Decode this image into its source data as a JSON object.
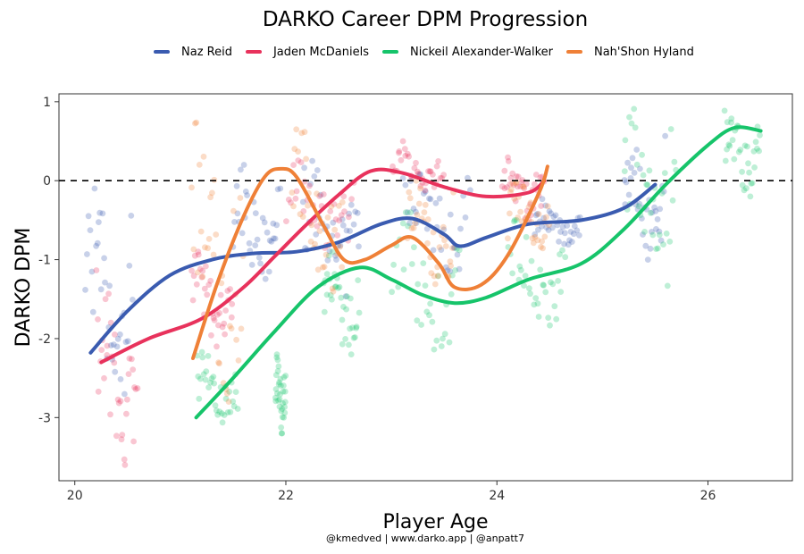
{
  "chart_data": {
    "type": "scatter",
    "title": "DARKO Career DPM Progression",
    "xlabel": "Player Age",
    "ylabel": "DARKO DPM",
    "xlim": [
      19.85,
      26.8
    ],
    "ylim": [
      -3.8,
      1.1
    ],
    "xticks": [
      20,
      22,
      24,
      26
    ],
    "yticks": [
      1,
      0,
      -1,
      -2,
      -3
    ],
    "reference_line": 0,
    "legend_position": "top",
    "caption": "@kmedved | www.darko.app | @anpatt7",
    "series": [
      {
        "name": "Naz Reid",
        "color": "#3a5bb0",
        "trend": [
          [
            20.15,
            -2.18
          ],
          [
            20.5,
            -1.65
          ],
          [
            20.9,
            -1.2
          ],
          [
            21.3,
            -1.0
          ],
          [
            21.7,
            -0.92
          ],
          [
            22.1,
            -0.9
          ],
          [
            22.5,
            -0.78
          ],
          [
            22.9,
            -0.55
          ],
          [
            23.2,
            -0.48
          ],
          [
            23.5,
            -0.68
          ],
          [
            23.65,
            -0.83
          ],
          [
            23.9,
            -0.72
          ],
          [
            24.3,
            -0.55
          ],
          [
            24.8,
            -0.5
          ],
          [
            25.2,
            -0.35
          ],
          [
            25.5,
            -0.05
          ]
        ],
        "clusters": [
          {
            "x": [
              20.1,
              20.55
            ],
            "y": [
              -3.1,
              -0.1
            ]
          },
          {
            "x": [
              21.5,
              21.95
            ],
            "y": [
              -1.3,
              0.2
            ]
          },
          {
            "x": [
              22.15,
              22.7
            ],
            "y": [
              -1.5,
              0.25
            ]
          },
          {
            "x": [
              23.1,
              23.75
            ],
            "y": [
              -1.2,
              0.3
            ]
          },
          {
            "x": [
              24.35,
              24.8
            ],
            "y": [
              -0.9,
              -0.2
            ]
          },
          {
            "x": [
              25.2,
              25.6
            ],
            "y": [
              -1.0,
              0.65
            ]
          }
        ]
      },
      {
        "name": "Jaden McDaniels",
        "color": "#e8325c",
        "trend": [
          [
            20.25,
            -2.3
          ],
          [
            20.7,
            -2.0
          ],
          [
            21.2,
            -1.75
          ],
          [
            21.6,
            -1.35
          ],
          [
            21.9,
            -0.95
          ],
          [
            22.2,
            -0.55
          ],
          [
            22.5,
            -0.18
          ],
          [
            22.8,
            0.12
          ],
          [
            23.1,
            0.1
          ],
          [
            23.5,
            -0.08
          ],
          [
            23.9,
            -0.2
          ],
          [
            24.3,
            -0.15
          ],
          [
            24.45,
            0.0
          ]
        ],
        "clusters": [
          {
            "x": [
              20.2,
              20.6
            ],
            "y": [
              -3.6,
              -1.1
            ]
          },
          {
            "x": [
              21.1,
              21.5
            ],
            "y": [
              -2.1,
              -0.9
            ]
          },
          {
            "x": [
              22.0,
              22.65
            ],
            "y": [
              -0.9,
              0.35
            ]
          },
          {
            "x": [
              23.0,
              23.5
            ],
            "y": [
              -0.2,
              0.5
            ]
          },
          {
            "x": [
              24.05,
              24.45
            ],
            "y": [
              -0.5,
              0.3
            ]
          }
        ]
      },
      {
        "name": "Nickeil Alexander-Walker",
        "color": "#16c46a",
        "trend": [
          [
            21.15,
            -3.0
          ],
          [
            21.5,
            -2.5
          ],
          [
            21.9,
            -1.9
          ],
          [
            22.3,
            -1.35
          ],
          [
            22.7,
            -1.1
          ],
          [
            23.0,
            -1.25
          ],
          [
            23.3,
            -1.45
          ],
          [
            23.6,
            -1.55
          ],
          [
            23.9,
            -1.48
          ],
          [
            24.3,
            -1.25
          ],
          [
            24.8,
            -1.05
          ],
          [
            25.2,
            -0.62
          ],
          [
            25.6,
            -0.05
          ],
          [
            26.0,
            0.45
          ],
          [
            26.25,
            0.67
          ],
          [
            26.5,
            0.63
          ]
        ],
        "clusters": [
          {
            "x": [
              21.15,
              21.55
            ],
            "y": [
              -3.15,
              -2.15
            ]
          },
          {
            "x": [
              21.9,
              22.0
            ],
            "y": [
              -3.2,
              -2.2
            ]
          },
          {
            "x": [
              22.35,
              22.7
            ],
            "y": [
              -2.2,
              -0.9
            ]
          },
          {
            "x": [
              23.0,
              23.65
            ],
            "y": [
              -2.2,
              -0.3
            ]
          },
          {
            "x": [
              24.1,
              24.65
            ],
            "y": [
              -2.0,
              -0.5
            ]
          },
          {
            "x": [
              25.2,
              25.7
            ],
            "y": [
              -1.5,
              0.95
            ]
          },
          {
            "x": [
              26.15,
              26.5
            ],
            "y": [
              -0.2,
              1.0
            ]
          }
        ]
      },
      {
        "name": "Nah'Shon Hyland",
        "color": "#ef8037",
        "trend": [
          [
            21.12,
            -2.25
          ],
          [
            21.35,
            -1.3
          ],
          [
            21.6,
            -0.45
          ],
          [
            21.8,
            0.05
          ],
          [
            21.95,
            0.15
          ],
          [
            22.1,
            0.05
          ],
          [
            22.35,
            -0.55
          ],
          [
            22.55,
            -1.0
          ],
          [
            22.75,
            -1.0
          ],
          [
            23.0,
            -0.82
          ],
          [
            23.2,
            -0.72
          ],
          [
            23.45,
            -1.05
          ],
          [
            23.6,
            -1.35
          ],
          [
            23.85,
            -1.32
          ],
          [
            24.1,
            -0.95
          ],
          [
            24.4,
            -0.15
          ],
          [
            24.48,
            0.18
          ]
        ],
        "clusters": [
          {
            "x": [
              21.1,
              21.6
            ],
            "y": [
              -2.8,
              0.8
            ]
          },
          {
            "x": [
              22.05,
              22.55
            ],
            "y": [
              -1.5,
              0.65
            ]
          },
          {
            "x": [
              23.15,
              23.6
            ],
            "y": [
              -1.4,
              0.0
            ]
          },
          {
            "x": [
              24.1,
              24.5
            ],
            "y": [
              -1.05,
              0.1
            ]
          }
        ]
      }
    ]
  }
}
